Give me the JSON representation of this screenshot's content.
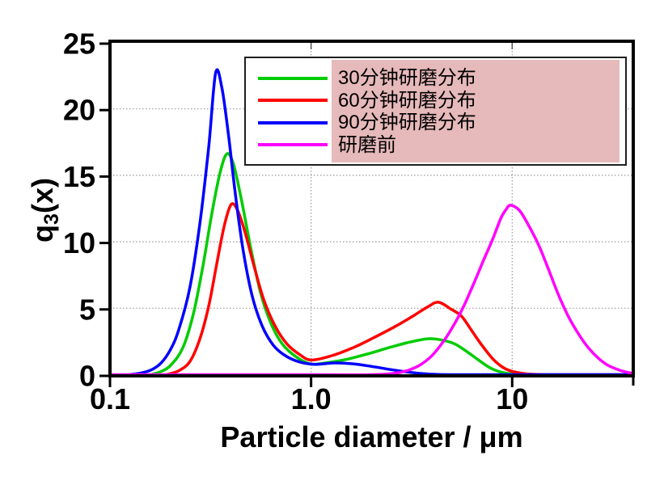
{
  "figure": {
    "background": "#ffffff",
    "plot_border_color": "#000000",
    "grid_color": "#999999",
    "tick_color": "#000000",
    "legend_border_color": "#1f1f1f",
    "legend_highlight_color": "#e6b9ba"
  },
  "chart_data": {
    "type": "line",
    "title": "",
    "xlabel": "Particle diameter / μm",
    "ylabel": "q3(x)",
    "ylabel_parts": {
      "base": "q",
      "sub": "3",
      "rest": "(x)"
    },
    "x_scale": "log",
    "xlim": [
      0.1,
      40
    ],
    "ylim": [
      0,
      25
    ],
    "xticks": [
      {
        "value": 0.1,
        "label": "0.1"
      },
      {
        "value": 1.0,
        "label": "1.0"
      },
      {
        "value": 10,
        "label": "10"
      }
    ],
    "edge_ticks": [
      40
    ],
    "yticks": [
      {
        "value": 0,
        "label": "0"
      },
      {
        "value": 5,
        "label": "5"
      },
      {
        "value": 10,
        "label": "10"
      },
      {
        "value": 15,
        "label": "15"
      },
      {
        "value": 20,
        "label": "20"
      },
      {
        "value": 25,
        "label": "25"
      }
    ],
    "grid_y": [
      5,
      10,
      15,
      20
    ],
    "grid_x": [
      1.0,
      10
    ],
    "legend_position": "top",
    "series": [
      {
        "name": "30分钟研磨分布",
        "color": "#00cc00",
        "points": [
          [
            0.16,
            0
          ],
          [
            0.18,
            0.25
          ],
          [
            0.2,
            0.7
          ],
          [
            0.23,
            2.0
          ],
          [
            0.26,
            4.6
          ],
          [
            0.29,
            8.2
          ],
          [
            0.32,
            12.0
          ],
          [
            0.35,
            15.0
          ],
          [
            0.38,
            16.6
          ],
          [
            0.41,
            15.9
          ],
          [
            0.45,
            13.2
          ],
          [
            0.5,
            9.6
          ],
          [
            0.56,
            6.2
          ],
          [
            0.63,
            3.9
          ],
          [
            0.72,
            2.3
          ],
          [
            0.85,
            1.3
          ],
          [
            1.0,
            0.8
          ],
          [
            1.2,
            0.9
          ],
          [
            1.5,
            1.15
          ],
          [
            1.9,
            1.55
          ],
          [
            2.4,
            2.0
          ],
          [
            3.0,
            2.4
          ],
          [
            3.8,
            2.7
          ],
          [
            4.5,
            2.6
          ],
          [
            5.2,
            2.3
          ],
          [
            6.0,
            1.7
          ],
          [
            6.8,
            1.1
          ],
          [
            7.8,
            0.5
          ],
          [
            9.0,
            0.15
          ],
          [
            10.5,
            0.03
          ],
          [
            13,
            0
          ],
          [
            25,
            0
          ],
          [
            40,
            0
          ]
        ]
      },
      {
        "name": "60分钟研磨分布",
        "color": "#ff0000",
        "points": [
          [
            0.19,
            0
          ],
          [
            0.22,
            0.3
          ],
          [
            0.25,
            1.0
          ],
          [
            0.28,
            2.7
          ],
          [
            0.31,
            5.2
          ],
          [
            0.34,
            8.4
          ],
          [
            0.37,
            11.2
          ],
          [
            0.4,
            12.8
          ],
          [
            0.43,
            12.4
          ],
          [
            0.47,
            10.7
          ],
          [
            0.52,
            8.2
          ],
          [
            0.58,
            5.7
          ],
          [
            0.66,
            3.7
          ],
          [
            0.76,
            2.3
          ],
          [
            0.88,
            1.5
          ],
          [
            1.0,
            1.1
          ],
          [
            1.25,
            1.4
          ],
          [
            1.6,
            2.0
          ],
          [
            2.0,
            2.7
          ],
          [
            2.6,
            3.6
          ],
          [
            3.2,
            4.4
          ],
          [
            3.8,
            5.1
          ],
          [
            4.3,
            5.45
          ],
          [
            5.0,
            4.9
          ],
          [
            5.6,
            4.4
          ],
          [
            6.3,
            3.3
          ],
          [
            7.0,
            2.3
          ],
          [
            8.0,
            1.2
          ],
          [
            9.0,
            0.55
          ],
          [
            10,
            0.25
          ],
          [
            11.5,
            0.08
          ],
          [
            13.5,
            0.01
          ],
          [
            16,
            0
          ],
          [
            28,
            0
          ],
          [
            40,
            0
          ]
        ]
      },
      {
        "name": "90分钟研磨分布",
        "color": "#0000ff",
        "points": [
          [
            0.125,
            0
          ],
          [
            0.14,
            0.1
          ],
          [
            0.16,
            0.35
          ],
          [
            0.18,
            0.9
          ],
          [
            0.2,
            1.9
          ],
          [
            0.22,
            3.4
          ],
          [
            0.25,
            6.6
          ],
          [
            0.28,
            11.4
          ],
          [
            0.31,
            17.2
          ],
          [
            0.335,
            22.7
          ],
          [
            0.36,
            21.6
          ],
          [
            0.39,
            17.8
          ],
          [
            0.42,
            13.6
          ],
          [
            0.46,
            9.3
          ],
          [
            0.51,
            5.9
          ],
          [
            0.57,
            3.7
          ],
          [
            0.65,
            2.2
          ],
          [
            0.75,
            1.4
          ],
          [
            0.88,
            0.95
          ],
          [
            1.05,
            0.78
          ],
          [
            1.3,
            0.88
          ],
          [
            1.6,
            0.82
          ],
          [
            2.0,
            0.62
          ],
          [
            2.5,
            0.38
          ],
          [
            3.0,
            0.2
          ],
          [
            3.6,
            0.08
          ],
          [
            4.3,
            0.02
          ],
          [
            5.0,
            0
          ],
          [
            15,
            0
          ],
          [
            40,
            0
          ]
        ]
      },
      {
        "name": "研磨前",
        "color": "#ff00ff",
        "points": [
          [
            0.1,
            0
          ],
          [
            1.0,
            0
          ],
          [
            2.0,
            0
          ],
          [
            2.6,
            0.1
          ],
          [
            3.0,
            0.3
          ],
          [
            3.5,
            0.75
          ],
          [
            4.0,
            1.45
          ],
          [
            4.6,
            2.6
          ],
          [
            5.2,
            3.9
          ],
          [
            5.8,
            5.3
          ],
          [
            6.5,
            7.0
          ],
          [
            7.2,
            8.6
          ],
          [
            8.0,
            10.2
          ],
          [
            8.8,
            11.8
          ],
          [
            9.3,
            12.4
          ],
          [
            9.8,
            12.75
          ],
          [
            10.8,
            12.4
          ],
          [
            11.8,
            11.5
          ],
          [
            13.5,
            9.8
          ],
          [
            15,
            8.1
          ],
          [
            17,
            6.0
          ],
          [
            19,
            4.4
          ],
          [
            21.5,
            3.0
          ],
          [
            24,
            2.0
          ],
          [
            27,
            1.2
          ],
          [
            30,
            0.7
          ],
          [
            34,
            0.35
          ],
          [
            38,
            0.15
          ],
          [
            40,
            0.1
          ]
        ]
      }
    ]
  }
}
